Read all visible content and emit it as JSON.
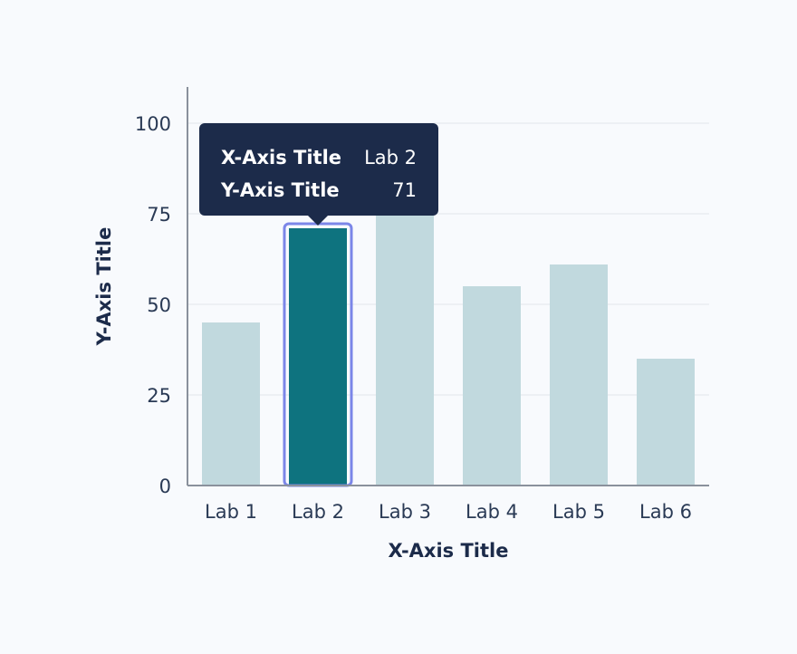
{
  "chart_data": {
    "type": "bar",
    "categories": [
      "Lab 1",
      "Lab 2",
      "Lab 3",
      "Lab 4",
      "Lab 5",
      "Lab 6"
    ],
    "values": [
      45,
      71,
      80,
      55,
      61,
      35
    ],
    "xlabel": "X-Axis Title",
    "ylabel": "Y-Axis Title",
    "ylim": [
      0,
      110
    ],
    "yticks": [
      0,
      25,
      50,
      75,
      100
    ],
    "yticks_labels": [
      "0",
      "25",
      "50",
      "75",
      "100"
    ],
    "grid": true,
    "highlighted_index": 1,
    "colors": {
      "bar": "#c1d9de",
      "bar_highlight": "#0e737f",
      "highlight_outline": "#7b86e8",
      "grid": "#e9edf2",
      "axis": "#8a919c",
      "tooltip_bg": "#1c2b4a"
    }
  },
  "tooltip": {
    "x_key": "X-Axis Title",
    "x_value": "Lab 2",
    "y_key": "Y-Axis Title",
    "y_value": "71"
  }
}
